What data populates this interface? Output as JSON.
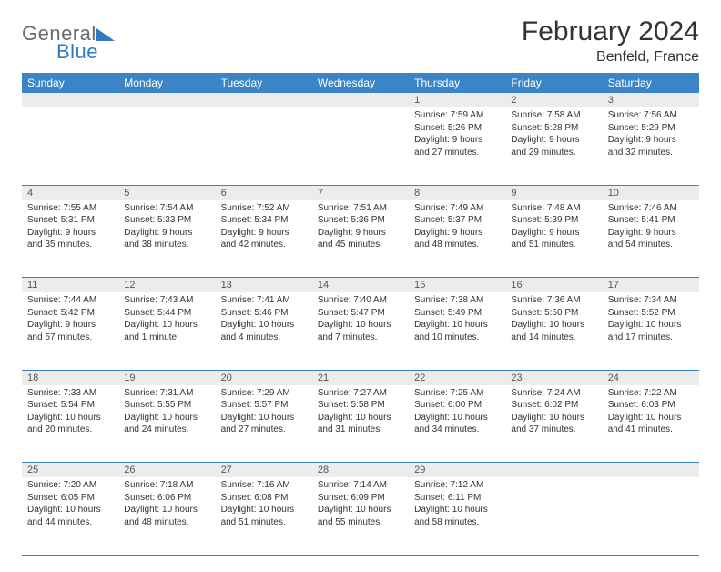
{
  "logo": {
    "general": "General",
    "blue": "Blue"
  },
  "title": "February 2024",
  "subtitle": "Benfeld, France",
  "colors": {
    "header_bg": "#3b85c6",
    "header_fg": "#ffffff",
    "daynum_bg": "#ececec",
    "rule": "#3b85c6",
    "logo_gray": "#6b6b6b",
    "logo_blue": "#2f7ac0"
  },
  "day_headers": [
    "Sunday",
    "Monday",
    "Tuesday",
    "Wednesday",
    "Thursday",
    "Friday",
    "Saturday"
  ],
  "weeks": [
    {
      "nums": [
        "",
        "",
        "",
        "",
        "1",
        "2",
        "3"
      ],
      "cells": [
        null,
        null,
        null,
        null,
        {
          "sunrise": "Sunrise: 7:59 AM",
          "sunset": "Sunset: 5:26 PM",
          "day1": "Daylight: 9 hours",
          "day2": "and 27 minutes."
        },
        {
          "sunrise": "Sunrise: 7:58 AM",
          "sunset": "Sunset: 5:28 PM",
          "day1": "Daylight: 9 hours",
          "day2": "and 29 minutes."
        },
        {
          "sunrise": "Sunrise: 7:56 AM",
          "sunset": "Sunset: 5:29 PM",
          "day1": "Daylight: 9 hours",
          "day2": "and 32 minutes."
        }
      ]
    },
    {
      "nums": [
        "4",
        "5",
        "6",
        "7",
        "8",
        "9",
        "10"
      ],
      "cells": [
        {
          "sunrise": "Sunrise: 7:55 AM",
          "sunset": "Sunset: 5:31 PM",
          "day1": "Daylight: 9 hours",
          "day2": "and 35 minutes."
        },
        {
          "sunrise": "Sunrise: 7:54 AM",
          "sunset": "Sunset: 5:33 PM",
          "day1": "Daylight: 9 hours",
          "day2": "and 38 minutes."
        },
        {
          "sunrise": "Sunrise: 7:52 AM",
          "sunset": "Sunset: 5:34 PM",
          "day1": "Daylight: 9 hours",
          "day2": "and 42 minutes."
        },
        {
          "sunrise": "Sunrise: 7:51 AM",
          "sunset": "Sunset: 5:36 PM",
          "day1": "Daylight: 9 hours",
          "day2": "and 45 minutes."
        },
        {
          "sunrise": "Sunrise: 7:49 AM",
          "sunset": "Sunset: 5:37 PM",
          "day1": "Daylight: 9 hours",
          "day2": "and 48 minutes."
        },
        {
          "sunrise": "Sunrise: 7:48 AM",
          "sunset": "Sunset: 5:39 PM",
          "day1": "Daylight: 9 hours",
          "day2": "and 51 minutes."
        },
        {
          "sunrise": "Sunrise: 7:46 AM",
          "sunset": "Sunset: 5:41 PM",
          "day1": "Daylight: 9 hours",
          "day2": "and 54 minutes."
        }
      ]
    },
    {
      "nums": [
        "11",
        "12",
        "13",
        "14",
        "15",
        "16",
        "17"
      ],
      "cells": [
        {
          "sunrise": "Sunrise: 7:44 AM",
          "sunset": "Sunset: 5:42 PM",
          "day1": "Daylight: 9 hours",
          "day2": "and 57 minutes."
        },
        {
          "sunrise": "Sunrise: 7:43 AM",
          "sunset": "Sunset: 5:44 PM",
          "day1": "Daylight: 10 hours",
          "day2": "and 1 minute."
        },
        {
          "sunrise": "Sunrise: 7:41 AM",
          "sunset": "Sunset: 5:46 PM",
          "day1": "Daylight: 10 hours",
          "day2": "and 4 minutes."
        },
        {
          "sunrise": "Sunrise: 7:40 AM",
          "sunset": "Sunset: 5:47 PM",
          "day1": "Daylight: 10 hours",
          "day2": "and 7 minutes."
        },
        {
          "sunrise": "Sunrise: 7:38 AM",
          "sunset": "Sunset: 5:49 PM",
          "day1": "Daylight: 10 hours",
          "day2": "and 10 minutes."
        },
        {
          "sunrise": "Sunrise: 7:36 AM",
          "sunset": "Sunset: 5:50 PM",
          "day1": "Daylight: 10 hours",
          "day2": "and 14 minutes."
        },
        {
          "sunrise": "Sunrise: 7:34 AM",
          "sunset": "Sunset: 5:52 PM",
          "day1": "Daylight: 10 hours",
          "day2": "and 17 minutes."
        }
      ]
    },
    {
      "nums": [
        "18",
        "19",
        "20",
        "21",
        "22",
        "23",
        "24"
      ],
      "cells": [
        {
          "sunrise": "Sunrise: 7:33 AM",
          "sunset": "Sunset: 5:54 PM",
          "day1": "Daylight: 10 hours",
          "day2": "and 20 minutes."
        },
        {
          "sunrise": "Sunrise: 7:31 AM",
          "sunset": "Sunset: 5:55 PM",
          "day1": "Daylight: 10 hours",
          "day2": "and 24 minutes."
        },
        {
          "sunrise": "Sunrise: 7:29 AM",
          "sunset": "Sunset: 5:57 PM",
          "day1": "Daylight: 10 hours",
          "day2": "and 27 minutes."
        },
        {
          "sunrise": "Sunrise: 7:27 AM",
          "sunset": "Sunset: 5:58 PM",
          "day1": "Daylight: 10 hours",
          "day2": "and 31 minutes."
        },
        {
          "sunrise": "Sunrise: 7:25 AM",
          "sunset": "Sunset: 6:00 PM",
          "day1": "Daylight: 10 hours",
          "day2": "and 34 minutes."
        },
        {
          "sunrise": "Sunrise: 7:24 AM",
          "sunset": "Sunset: 6:02 PM",
          "day1": "Daylight: 10 hours",
          "day2": "and 37 minutes."
        },
        {
          "sunrise": "Sunrise: 7:22 AM",
          "sunset": "Sunset: 6:03 PM",
          "day1": "Daylight: 10 hours",
          "day2": "and 41 minutes."
        }
      ]
    },
    {
      "nums": [
        "25",
        "26",
        "27",
        "28",
        "29",
        "",
        ""
      ],
      "cells": [
        {
          "sunrise": "Sunrise: 7:20 AM",
          "sunset": "Sunset: 6:05 PM",
          "day1": "Daylight: 10 hours",
          "day2": "and 44 minutes."
        },
        {
          "sunrise": "Sunrise: 7:18 AM",
          "sunset": "Sunset: 6:06 PM",
          "day1": "Daylight: 10 hours",
          "day2": "and 48 minutes."
        },
        {
          "sunrise": "Sunrise: 7:16 AM",
          "sunset": "Sunset: 6:08 PM",
          "day1": "Daylight: 10 hours",
          "day2": "and 51 minutes."
        },
        {
          "sunrise": "Sunrise: 7:14 AM",
          "sunset": "Sunset: 6:09 PM",
          "day1": "Daylight: 10 hours",
          "day2": "and 55 minutes."
        },
        {
          "sunrise": "Sunrise: 7:12 AM",
          "sunset": "Sunset: 6:11 PM",
          "day1": "Daylight: 10 hours",
          "day2": "and 58 minutes."
        },
        null,
        null
      ]
    }
  ]
}
